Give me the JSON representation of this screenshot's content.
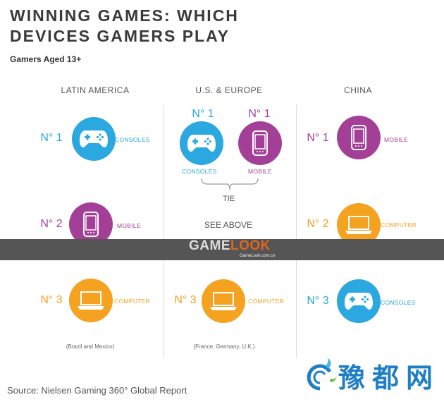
{
  "title_line1": "WINNING GAMES: WHICH",
  "title_line2": "DEVICES GAMERS PLAY",
  "subtitle": "Gamers Aged 13+",
  "colors": {
    "consoles": "#2aa8df",
    "mobile": "#a43f98",
    "computer": "#f4a21f"
  },
  "regions": [
    {
      "name": "LATIN AMERICA",
      "note": "(Brazil and Mexico)",
      "ranks": [
        {
          "rank": "N° 1",
          "device": "CONSOLES",
          "icon": "gamepad-icon"
        },
        {
          "rank": "N° 2",
          "device": "MOBILE",
          "icon": "phone-icon"
        },
        {
          "rank": "N° 3",
          "device": "COMPUTER",
          "icon": "laptop-icon"
        }
      ]
    },
    {
      "name": "U.S. & EUROPE",
      "note": "(France, Germany, U.K.)",
      "tie": [
        {
          "rank": "N° 1",
          "device": "CONSOLES",
          "icon": "gamepad-icon"
        },
        {
          "rank": "N° 1",
          "device": "MOBILE",
          "icon": "phone-icon"
        }
      ],
      "tie_label": "TIE",
      "rank2": "SEE ABOVE",
      "rank3": {
        "rank": "N° 3",
        "device": "COMPUTER",
        "icon": "laptop-icon"
      }
    },
    {
      "name": "CHINA",
      "ranks": [
        {
          "rank": "N° 1",
          "device": "MOBILE",
          "icon": "phone-icon"
        },
        {
          "rank": "N° 2",
          "device": "COMPUTER",
          "icon": "laptop-icon"
        },
        {
          "rank": "N° 3",
          "device": "CONSOLES",
          "icon": "gamepad-icon"
        }
      ]
    }
  ],
  "source": "Source: Nielsen Gaming 360° Global Report",
  "watermark": {
    "brand_a": "GAME",
    "brand_b": "LOOK",
    "url": "GameLook.com.cn"
  },
  "logo_text": "豫都网"
}
